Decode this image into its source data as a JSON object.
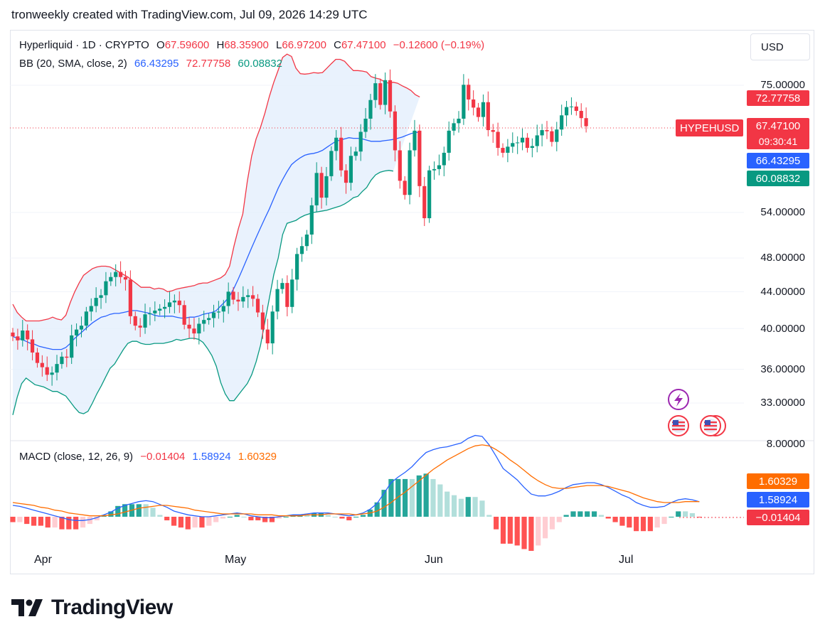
{
  "header": {
    "caption": "tronweekly created with TradingView.com, Jul 09, 2026 14:29 UTC"
  },
  "legend": {
    "symbol": "Hyperliquid · 1D · CRYPTO",
    "open_label": "O",
    "open": "67.59600",
    "high_label": "H",
    "high": "68.35900",
    "low_label": "L",
    "low": "66.97200",
    "close_label": "C",
    "close": "67.47100",
    "change": "−0.12600 (−0.19%)",
    "bb_label": "BB (20, SMA, close, 2)",
    "bb_basis": "66.43295",
    "bb_upper": "72.77758",
    "bb_lower": "60.08832",
    "macd_label": "MACD (close, 12, 26, 9)",
    "macd_hist": "−0.01404",
    "macd_line": "1.58924",
    "macd_signal": "1.60329"
  },
  "currency_button": "USD",
  "price_axis": {
    "ticks": [
      "75.00000",
      "54.00000",
      "48.00000",
      "44.00000",
      "40.00000",
      "36.00000",
      "33.00000"
    ]
  },
  "macd_axis": {
    "ticks": [
      "8.00000"
    ]
  },
  "price_tags": {
    "bb_upper": "72.77758",
    "symbol": "HYPEHUSD",
    "last": "67.47100",
    "countdown": "09:30:41",
    "bb_basis": "66.43295",
    "bb_lower": "60.08832",
    "macd_signal": "1.60329",
    "macd_line": "1.58924",
    "macd_hist": "−0.01404"
  },
  "months": [
    "Apr",
    "May",
    "Jun",
    "Jul"
  ],
  "brand": "TradingView",
  "colors": {
    "up": "#089981",
    "down": "#f23645",
    "bb_upper": "#f23645",
    "bb_lower": "#089981",
    "bb_basis": "#2962ff",
    "bb_fill": "#e3effd",
    "macd_line": "#2962ff",
    "macd_signal": "#ff6d00",
    "hist_up_strong": "#26a69a",
    "hist_up_weak": "#b2dfdb",
    "hist_down_strong": "#ff5252",
    "hist_down_weak": "#ffcdd2"
  },
  "chart_data": {
    "type": "candlestick",
    "title": "Hyperliquid · 1D · CRYPTO",
    "y_scale": "log",
    "ylim": [
      30.5,
      82
    ],
    "x_labels": [
      "Apr",
      "May",
      "Jun",
      "Jul"
    ],
    "closes": [
      39.2,
      38.8,
      39.8,
      38.9,
      37.6,
      36.6,
      36.2,
      35.5,
      35.7,
      36.5,
      37.2,
      37.1,
      39.3,
      39.9,
      40.3,
      41.8,
      42.4,
      43.3,
      43.6,
      45.2,
      45.7,
      46.3,
      45.7,
      45.4,
      41.3,
      40.3,
      40.1,
      41.5,
      41.6,
      41.9,
      42.1,
      42.3,
      42.8,
      43.0,
      42.5,
      40.4,
      40.0,
      39.5,
      40.5,
      40.9,
      41.1,
      41.7,
      41.8,
      42.4,
      44.0,
      43.1,
      42.9,
      43.4,
      43.6,
      43.2,
      41.7,
      39.9,
      38.5,
      41.8,
      44.3,
      45.0,
      42.3,
      45.4,
      48.5,
      49.5,
      51.0,
      55.0,
      59.8,
      56.1,
      59.3,
      63.3,
      65.5,
      60.2,
      58.3,
      62.5,
      63.2,
      66.5,
      68.8,
      72.2,
      75.4,
      71.3,
      76.0,
      70.1,
      63.4,
      58.6,
      56.5,
      63.4,
      66.7,
      57.8,
      53.2,
      60.2,
      60.4,
      61.0,
      63.0,
      66.7,
      68.0,
      68.8,
      75.1,
      72.3,
      70.8,
      69.1,
      71.8,
      66.8,
      66.5,
      63.8,
      63.0,
      64.0,
      64.6,
      64.7,
      65.5,
      63.8,
      64.1,
      65.9,
      66.8,
      66.6,
      64.8,
      66.9,
      69.4,
      70.9,
      71.0,
      70.2,
      68.9,
      67.47
    ],
    "bb_upper": [
      42.6,
      41.7,
      41.2,
      40.8,
      40.8,
      40.8,
      40.8,
      40.9,
      41.0,
      41.2,
      41.0,
      40.9,
      41.4,
      42.8,
      44.0,
      45.0,
      45.9,
      46.3,
      46.7,
      46.9,
      47.0,
      47.0,
      46.9,
      46.6,
      46.3,
      46.0,
      45.7,
      45.3,
      44.9,
      44.5,
      44.5,
      44.5,
      44.3,
      44.4,
      44.3,
      44.0,
      44.1,
      44.3,
      44.4,
      44.5,
      44.6,
      44.7,
      44.9,
      45.0,
      45.0,
      45.2,
      45.4,
      45.6,
      46.0,
      47.0,
      49.5,
      51.8,
      53.8,
      58.5,
      62.5,
      65.3,
      67.3,
      69.8,
      72.9,
      75.6,
      78.0,
      80.6,
      81.3,
      80.8,
      78.4,
      77.3,
      77.2,
      77.3,
      77.5,
      77.4,
      77.5,
      78.4,
      79.3,
      80.2,
      80.2,
      79.8,
      78.8,
      77.9,
      77.9,
      77.8,
      77.6,
      76.7,
      76.4,
      76.2,
      75.7,
      75.4,
      75.6,
      75.4,
      74.9,
      74.5,
      74.0,
      73.2,
      72.77
    ],
    "bb_basis": [
      39.2,
      39.0,
      38.9,
      38.7,
      38.5,
      38.4,
      38.2,
      38.1,
      38.0,
      37.9,
      37.9,
      37.9,
      38.1,
      38.5,
      39.0,
      39.4,
      39.8,
      40.2,
      40.6,
      40.9,
      41.2,
      41.3,
      41.5,
      41.6,
      41.6,
      41.7,
      41.8,
      41.9,
      41.9,
      41.8,
      41.7,
      41.6,
      41.4,
      41.3,
      41.3,
      41.3,
      41.3,
      41.2,
      41.1,
      41.1,
      41.2,
      41.2,
      41.3,
      41.5,
      41.6,
      41.7,
      41.9,
      42.4,
      42.9,
      43.5,
      44.4,
      45.5,
      46.7,
      48.0,
      49.3,
      50.6,
      51.9,
      53.2,
      54.5,
      56.0,
      57.5,
      58.8,
      60.0,
      61.1,
      61.7,
      62.2,
      62.6,
      62.8,
      62.9,
      63.1,
      63.4,
      63.9,
      64.4,
      64.9,
      65.1,
      65.3,
      65.5,
      65.4,
      65.4,
      65.3,
      65.1,
      64.9,
      64.9,
      64.9,
      65.0,
      65.1,
      65.2,
      65.4,
      65.6,
      65.9,
      66.2,
      66.4,
      66.43
    ],
    "bb_lower": [
      32.0,
      33.5,
      34.7,
      35.2,
      34.9,
      34.6,
      34.5,
      34.4,
      34.2,
      34.0,
      34.0,
      33.8,
      33.6,
      33.1,
      32.6,
      32.2,
      32.1,
      32.3,
      33.0,
      33.8,
      34.5,
      35.3,
      36.1,
      36.5,
      37.2,
      37.9,
      38.5,
      38.7,
      38.7,
      38.5,
      38.4,
      38.4,
      38.5,
      38.5,
      38.5,
      38.6,
      38.7,
      38.9,
      38.8,
      38.9,
      39.0,
      39.0,
      38.9,
      38.6,
      38.0,
      37.3,
      36.3,
      34.8,
      33.8,
      33.2,
      33.2,
      33.7,
      34.2,
      34.7,
      35.5,
      36.7,
      38.3,
      40.7,
      43.3,
      46.0,
      48.0,
      51.0,
      52.5,
      52.7,
      52.9,
      53.3,
      53.6,
      53.8,
      54.0,
      54.1,
      54.2,
      54.3,
      54.5,
      54.7,
      54.9,
      55.2,
      55.6,
      56.1,
      56.3,
      57.0,
      57.6,
      58.7,
      59.5,
      59.9,
      60.1,
      60.2,
      60.08832
    ],
    "macd_line": [
      1.2,
      1.1,
      0.9,
      0.7,
      0.5,
      0.3,
      0.1,
      -0.1,
      -0.3,
      -0.4,
      -0.4,
      -0.3,
      -0.1,
      0.2,
      0.5,
      0.9,
      1.2,
      1.4,
      1.6,
      1.7,
      1.6,
      1.3,
      1.0,
      0.6,
      0.4,
      0.2,
      0.1,
      0.0,
      0.0,
      0.1,
      0.2,
      0.3,
      0.4,
      0.3,
      0.1,
      0.0,
      -0.1,
      -0.1,
      0.0,
      0.1,
      0.2,
      0.2,
      0.3,
      0.4,
      0.4,
      0.4,
      0.3,
      0.2,
      0.1,
      0.2,
      0.4,
      0.8,
      1.4,
      2.5,
      3.6,
      4.2,
      4.7,
      5.3,
      6.1,
      6.8,
      7.1,
      7.3,
      7.4,
      7.6,
      7.8,
      8.3,
      8.6,
      8.5,
      7.6,
      6.4,
      5.1,
      4.5,
      3.9,
      3.1,
      2.4,
      2.2,
      2.2,
      2.4,
      2.7,
      3.1,
      3.4,
      3.5,
      3.6,
      3.6,
      3.4,
      3.1,
      2.7,
      2.3,
      2.0,
      1.5,
      1.2,
      1.0,
      1.0,
      1.1,
      1.5,
      1.8,
      1.9,
      1.8,
      1.58924
    ],
    "macd_signal": [
      1.5,
      1.4,
      1.3,
      1.2,
      1.0,
      0.9,
      0.7,
      0.6,
      0.4,
      0.3,
      0.2,
      0.1,
      0.1,
      0.1,
      0.2,
      0.3,
      0.5,
      0.7,
      0.9,
      1.0,
      1.1,
      1.2,
      1.2,
      1.1,
      1.0,
      0.9,
      0.7,
      0.6,
      0.5,
      0.4,
      0.3,
      0.3,
      0.3,
      0.3,
      0.3,
      0.2,
      0.2,
      0.2,
      0.1,
      0.1,
      0.1,
      0.1,
      0.2,
      0.2,
      0.2,
      0.3,
      0.3,
      0.3,
      0.3,
      0.2,
      0.3,
      0.4,
      0.6,
      1.0,
      1.5,
      2.1,
      2.6,
      3.2,
      3.8,
      4.4,
      5.0,
      5.5,
      6.0,
      6.4,
      6.8,
      7.2,
      7.5,
      7.6,
      7.5,
      7.1,
      6.6,
      6.0,
      5.5,
      4.9,
      4.3,
      3.8,
      3.4,
      3.1,
      3.0,
      3.0,
      3.1,
      3.2,
      3.3,
      3.3,
      3.3,
      3.2,
      3.0,
      2.8,
      2.6,
      2.3,
      2.0,
      1.8,
      1.6,
      1.5,
      1.5,
      1.5,
      1.6,
      1.6,
      1.60329
    ],
    "macd_hist_note": "histogram = macd_line − macd_signal"
  }
}
